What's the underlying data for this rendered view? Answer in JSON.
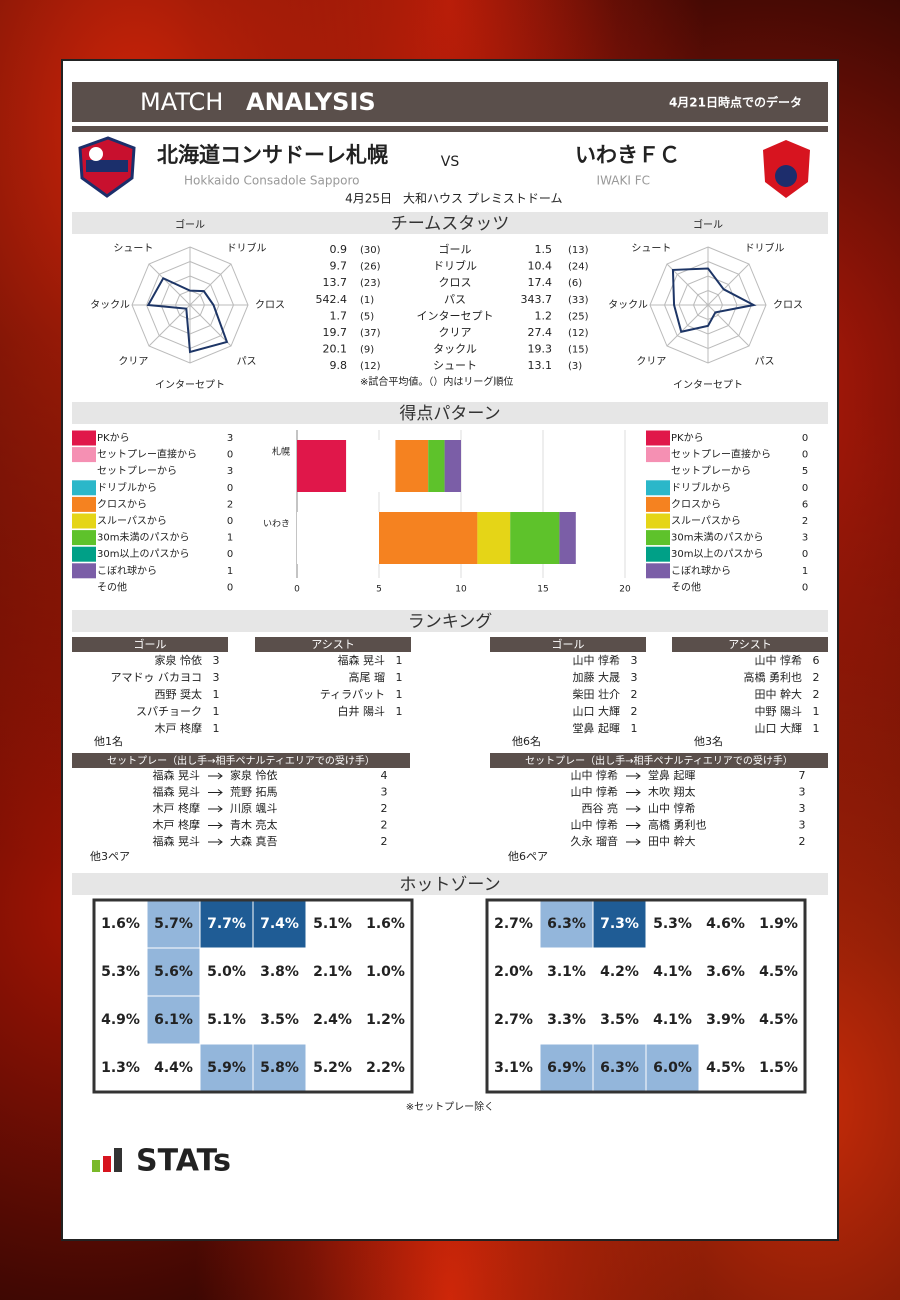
{
  "header": {
    "title_light": "MATCH",
    "title_bold": "ANALYSIS",
    "data_date": "4月21日時点でのデータ"
  },
  "match": {
    "home": {
      "name": "北海道コンサドーレ札幌",
      "name_en": "Hokkaido Consadole Sapporo"
    },
    "vs": "VS",
    "away": {
      "name": "いわきＦＣ",
      "name_en": "IWAKI FC"
    },
    "date": "4月25日",
    "venue": "大和ハウス プレミストドーム"
  },
  "team_stats": {
    "title": "チームスタッツ",
    "labels": [
      "ゴール",
      "ドリブル",
      "クロス",
      "パス",
      "インターセプト",
      "クリア",
      "タックル",
      "シュート"
    ],
    "home": {
      "values": [
        0.9,
        9.7,
        13.7,
        542.4,
        1.7,
        19.7,
        20.1,
        9.8
      ],
      "ranks": [
        30,
        26,
        23,
        1,
        5,
        37,
        9,
        12
      ],
      "rank_labels": [
        "(30)",
        "(26)",
        "(23)",
        "(1)",
        "(5)",
        "(37)",
        "(9)",
        "(12)"
      ]
    },
    "away": {
      "values": [
        1.5,
        10.4,
        17.4,
        343.7,
        1.2,
        27.4,
        19.3,
        13.1
      ],
      "ranks": [
        13,
        24,
        6,
        33,
        25,
        12,
        15,
        3
      ],
      "rank_labels": [
        "(13)",
        "(24)",
        "(6)",
        "(33)",
        "(25)",
        "(12)",
        "(15)",
        "(3)"
      ]
    },
    "note": "※試合平均値。（）内はリーグ順位"
  },
  "chart_data": {
    "type": "bar",
    "title": "得点パターン",
    "categories": [
      "札幌",
      "いわき"
    ],
    "series": [
      {
        "name": "PKから",
        "color": "#e0174a",
        "values": [
          3,
          0
        ]
      },
      {
        "name": "セットプレー直接から",
        "color": "#f590b3",
        "values": [
          0,
          0
        ]
      },
      {
        "name": "セットプレーから",
        "color": "#ffffff",
        "values": [
          3,
          5
        ]
      },
      {
        "name": "ドリブルから",
        "color": "#2bb7c9",
        "values": [
          0,
          0
        ]
      },
      {
        "name": "クロスから",
        "color": "#f58220",
        "values": [
          2,
          6
        ]
      },
      {
        "name": "スルーパスから",
        "color": "#e5d517",
        "values": [
          0,
          2
        ]
      },
      {
        "name": "30m未満のパスから",
        "color": "#5ec22b",
        "values": [
          1,
          3
        ]
      },
      {
        "name": "30m以上のパスから",
        "color": "#00a087",
        "values": [
          0,
          0
        ]
      },
      {
        "name": "こぼれ球から",
        "color": "#7b5ea7",
        "values": [
          1,
          1
        ]
      },
      {
        "name": "その他",
        "color": "#ffffff",
        "values": [
          0,
          0
        ]
      }
    ],
    "xlim": [
      0,
      20
    ],
    "xticks": [
      0,
      5,
      10,
      15,
      20
    ]
  },
  "rankings": {
    "title": "ランキング",
    "home": {
      "goal": {
        "header": "ゴール",
        "rows": [
          {
            "name": "家泉 怜依",
            "count": 3
          },
          {
            "name": "アマドゥ バカヨコ",
            "count": 3
          },
          {
            "name": "西野 奨太",
            "count": 1
          },
          {
            "name": "スパチョーク",
            "count": 1
          },
          {
            "name": "木戸 柊摩",
            "count": 1
          }
        ],
        "others": "他1名"
      },
      "assist": {
        "header": "アシスト",
        "rows": [
          {
            "name": "福森 晃斗",
            "count": 1
          },
          {
            "name": "高尾 瑠",
            "count": 1
          },
          {
            "name": "ティラパット",
            "count": 1
          },
          {
            "name": "白井 陽斗",
            "count": 1
          }
        ]
      },
      "setplay": {
        "header": "セットプレー（出し手→相手ペナルティエリアでの受け手）",
        "rows": [
          {
            "from": "福森 晃斗",
            "to": "家泉 怜依",
            "count": 4
          },
          {
            "from": "福森 晃斗",
            "to": "荒野 拓馬",
            "count": 3
          },
          {
            "from": "木戸 柊摩",
            "to": "川原 颯斗",
            "count": 2
          },
          {
            "from": "木戸 柊摩",
            "to": "青木 亮太",
            "count": 2
          },
          {
            "from": "福森 晃斗",
            "to": "大森 真吾",
            "count": 2
          }
        ],
        "others": "他3ペア"
      }
    },
    "away": {
      "goal": {
        "header": "ゴール",
        "rows": [
          {
            "name": "山中 惇希",
            "count": 3
          },
          {
            "name": "加藤 大晟",
            "count": 3
          },
          {
            "name": "柴田 壮介",
            "count": 2
          },
          {
            "name": "山口 大輝",
            "count": 2
          },
          {
            "name": "堂鼻 起暉",
            "count": 1
          }
        ],
        "others": "他6名"
      },
      "assist": {
        "header": "アシスト",
        "rows": [
          {
            "name": "山中 惇希",
            "count": 6
          },
          {
            "name": "高橋 勇利也",
            "count": 2
          },
          {
            "name": "田中 幹大",
            "count": 2
          },
          {
            "name": "中野 陽斗",
            "count": 1
          },
          {
            "name": "山口 大輝",
            "count": 1
          }
        ],
        "others": "他3名"
      },
      "setplay": {
        "header": "セットプレー（出し手→相手ペナルティエリアでの受け手）",
        "rows": [
          {
            "from": "山中 惇希",
            "to": "堂鼻 起暉",
            "count": 7
          },
          {
            "from": "山中 惇希",
            "to": "木吹 翔太",
            "count": 3
          },
          {
            "from": "西谷 亮",
            "to": "山中 惇希",
            "count": 3
          },
          {
            "from": "山中 惇希",
            "to": "高橋 勇利也",
            "count": 3
          },
          {
            "from": "久永 瑠音",
            "to": "田中 幹大",
            "count": 2
          }
        ],
        "others": "他6ペア"
      }
    }
  },
  "hot_zone": {
    "title": "ホットゾーン",
    "home": {
      "values": [
        [
          1.6,
          5.7,
          7.7,
          7.4,
          5.1,
          1.6
        ],
        [
          5.3,
          5.6,
          5.0,
          3.8,
          2.1,
          1.0
        ],
        [
          4.9,
          6.1,
          5.1,
          3.5,
          2.4,
          1.2
        ],
        [
          1.3,
          4.4,
          5.9,
          5.8,
          5.2,
          2.2
        ]
      ],
      "value_labels": [
        [
          "1.6%",
          "5.7%",
          "7.7%",
          "7.4%",
          "5.1%",
          "1.6%"
        ],
        [
          "5.3%",
          "5.6%",
          "5.0%",
          "3.8%",
          "2.1%",
          "1.0%"
        ],
        [
          "4.9%",
          "6.1%",
          "5.1%",
          "3.5%",
          "2.4%",
          "1.2%"
        ],
        [
          "1.3%",
          "4.4%",
          "5.9%",
          "5.8%",
          "5.2%",
          "2.2%"
        ]
      ]
    },
    "away": {
      "values": [
        [
          2.7,
          6.3,
          7.3,
          5.3,
          4.6,
          1.9
        ],
        [
          2.0,
          3.1,
          4.2,
          4.1,
          3.6,
          4.5
        ],
        [
          2.7,
          3.3,
          3.5,
          4.1,
          3.9,
          4.5
        ],
        [
          3.1,
          6.9,
          6.3,
          6.0,
          4.5,
          1.5
        ]
      ],
      "value_labels": [
        [
          "2.7%",
          "6.3%",
          "7.3%",
          "5.3%",
          "4.6%",
          "1.9%"
        ],
        [
          "2.0%",
          "3.1%",
          "4.2%",
          "4.1%",
          "3.6%",
          "4.5%"
        ],
        [
          "2.7%",
          "3.3%",
          "3.5%",
          "4.1%",
          "3.9%",
          "4.5%"
        ],
        [
          "3.1%",
          "6.9%",
          "6.3%",
          "6.0%",
          "4.5%",
          "1.5%"
        ]
      ]
    },
    "note": "※セットプレー除く"
  },
  "footer": {
    "logo": "STATs"
  }
}
